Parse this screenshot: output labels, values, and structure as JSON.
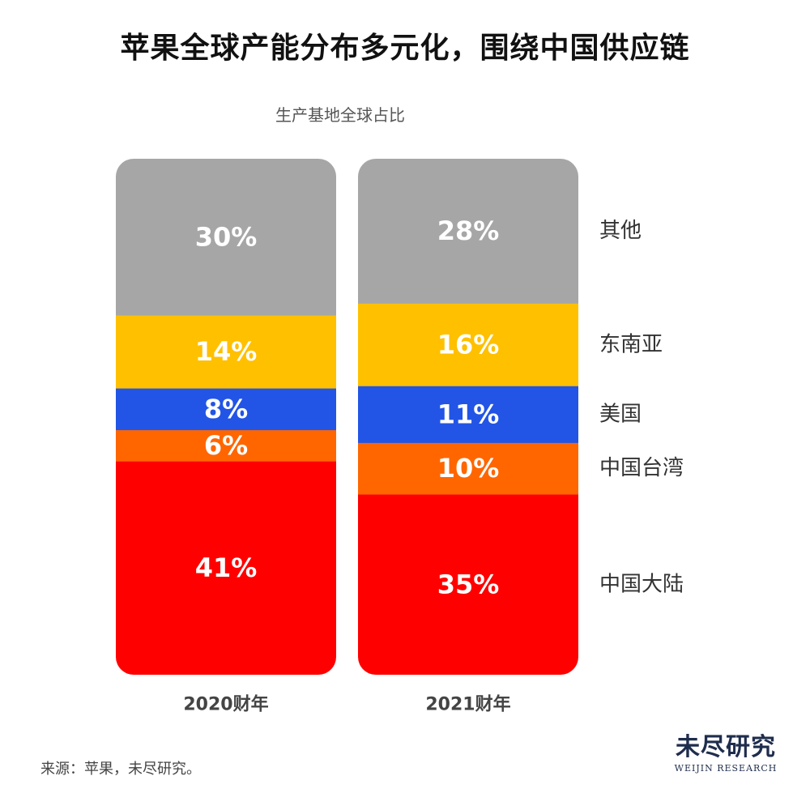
{
  "title": "苹果全球产能分布多元化，围绕中国供应链",
  "source": "来源：苹果，未尽研究。",
  "logo": {
    "name_cn": "未尽研究",
    "name_en": "WEIJIN RESEARCH"
  },
  "chart_data": {
    "type": "bar",
    "stacked": true,
    "unit": "%",
    "subtitle": "生产基地全球占比",
    "categories": [
      "2020财年",
      "2021财年"
    ],
    "series": [
      {
        "name": "中国大陆",
        "color": "#ff0000",
        "values": [
          41,
          35
        ],
        "labels": [
          "41%",
          "35%"
        ]
      },
      {
        "name": "中国台湾",
        "color": "#ff6600",
        "values": [
          6,
          10
        ],
        "labels": [
          "6%",
          "10%"
        ]
      },
      {
        "name": "美国",
        "color": "#2255e6",
        "values": [
          8,
          11
        ],
        "labels": [
          "8%",
          "11%"
        ]
      },
      {
        "name": "东南亚",
        "color": "#ffc000",
        "values": [
          14,
          16
        ],
        "labels": [
          "14%",
          "16%"
        ]
      },
      {
        "name": "其他",
        "color": "#a6a6a6",
        "values": [
          30,
          28
        ],
        "labels": [
          "30%",
          "28%"
        ]
      }
    ],
    "legend_position": "right",
    "grid": false
  }
}
